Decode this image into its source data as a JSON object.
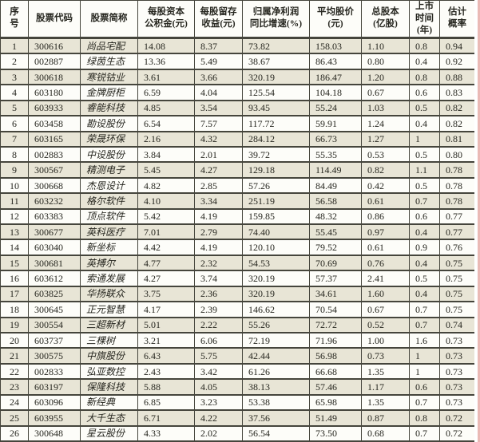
{
  "colors": {
    "row_alt": "#e8e5d6",
    "row_plain": "#fdfdf9",
    "border": "#45453c",
    "text": "#26261f",
    "edge_strip": "#eab9b5"
  },
  "chart_data": {
    "type": "table",
    "column_keys": [
      "index",
      "code",
      "name",
      "capital_reserve_per_share",
      "retained_earnings_per_share",
      "net_profit_yoy_growth_pct",
      "avg_price",
      "total_shares_100m",
      "years_listed",
      "estimated_probability"
    ],
    "column_labels": [
      "序\n号",
      "股票代码",
      "股票简称",
      "每股资本\n公积金(元)",
      "每股留存\n收益(元)",
      "归属净利润\n同比增速(%)",
      "平均股价\n(元)",
      "总股本\n(亿股)",
      "上市\n时间\n(年)",
      "估计\n概率"
    ],
    "rows": [
      [
        "1",
        "300616",
        "尚品宅配",
        "14.08",
        "8.37",
        "73.82",
        "158.03",
        "1.10",
        "0.8",
        "0.94"
      ],
      [
        "2",
        "002887",
        "绿茵生态",
        "13.36",
        "5.49",
        "38.67",
        "86.43",
        "0.80",
        "0.4",
        "0.92"
      ],
      [
        "3",
        "300618",
        "寒锐钴业",
        "3.61",
        "3.66",
        "320.19",
        "186.47",
        "1.20",
        "0.8",
        "0.88"
      ],
      [
        "4",
        "603180",
        "金牌厨柜",
        "6.59",
        "4.04",
        "125.54",
        "104.18",
        "0.67",
        "0.6",
        "0.83"
      ],
      [
        "5",
        "603933",
        "睿能科技",
        "4.85",
        "3.54",
        "93.45",
        "55.24",
        "1.03",
        "0.5",
        "0.82"
      ],
      [
        "6",
        "603458",
        "勘设股份",
        "6.54",
        "7.57",
        "117.72",
        "59.91",
        "1.24",
        "0.4",
        "0.82"
      ],
      [
        "7",
        "603165",
        "荣晟环保",
        "2.16",
        "4.32",
        "284.12",
        "66.73",
        "1.27",
        "1",
        "0.81"
      ],
      [
        "8",
        "002883",
        "中设股份",
        "3.84",
        "2.01",
        "39.72",
        "55.35",
        "0.53",
        "0.5",
        "0.80"
      ],
      [
        "9",
        "300567",
        "精测电子",
        "5.45",
        "4.27",
        "129.18",
        "114.49",
        "0.82",
        "1.1",
        "0.78"
      ],
      [
        "10",
        "300668",
        "杰恩设计",
        "4.82",
        "2.85",
        "57.26",
        "84.49",
        "0.42",
        "0.5",
        "0.78"
      ],
      [
        "11",
        "603232",
        "格尔软件",
        "4.10",
        "3.34",
        "251.19",
        "56.58",
        "0.61",
        "0.7",
        "0.78"
      ],
      [
        "12",
        "603383",
        "顶点软件",
        "5.42",
        "4.19",
        "159.85",
        "48.32",
        "0.86",
        "0.6",
        "0.77"
      ],
      [
        "13",
        "300677",
        "英科医疗",
        "7.01",
        "2.79",
        "74.40",
        "55.45",
        "0.97",
        "0.4",
        "0.77"
      ],
      [
        "14",
        "603040",
        "新坐标",
        "4.42",
        "4.19",
        "120.10",
        "79.52",
        "0.61",
        "0.9",
        "0.76"
      ],
      [
        "15",
        "300681",
        "英搏尔",
        "4.77",
        "2.32",
        "54.53",
        "70.69",
        "0.76",
        "0.4",
        "0.75"
      ],
      [
        "16",
        "603612",
        "索通发展",
        "4.27",
        "3.74",
        "320.19",
        "57.37",
        "2.41",
        "0.5",
        "0.75"
      ],
      [
        "17",
        "603825",
        "华扬联众",
        "3.75",
        "2.36",
        "320.19",
        "34.61",
        "1.60",
        "0.4",
        "0.75"
      ],
      [
        "18",
        "300645",
        "正元智慧",
        "4.17",
        "2.39",
        "146.62",
        "70.54",
        "0.67",
        "0.7",
        "0.75"
      ],
      [
        "19",
        "300554",
        "三超新材",
        "5.01",
        "2.22",
        "55.26",
        "72.72",
        "0.52",
        "0.7",
        "0.74"
      ],
      [
        "20",
        "603737",
        "三棵树",
        "3.21",
        "6.06",
        "72.19",
        "71.96",
        "1.00",
        "1.6",
        "0.73"
      ],
      [
        "21",
        "300575",
        "中旗股份",
        "6.43",
        "5.75",
        "42.44",
        "56.98",
        "0.73",
        "1",
        "0.73"
      ],
      [
        "22",
        "002833",
        "弘亚数控",
        "2.43",
        "3.42",
        "61.26",
        "66.68",
        "1.35",
        "1",
        "0.73"
      ],
      [
        "23",
        "603197",
        "保隆科技",
        "5.88",
        "4.05",
        "38.13",
        "57.46",
        "1.17",
        "0.6",
        "0.73"
      ],
      [
        "24",
        "603096",
        "新经典",
        "6.85",
        "3.23",
        "53.38",
        "65.98",
        "1.35",
        "0.7",
        "0.73"
      ],
      [
        "25",
        "603955",
        "大千生态",
        "6.71",
        "4.22",
        "37.56",
        "51.49",
        "0.87",
        "0.8",
        "0.72"
      ],
      [
        "26",
        "300648",
        "星云股份",
        "4.33",
        "2.02",
        "56.54",
        "73.50",
        "0.68",
        "0.7",
        "0.72"
      ]
    ]
  }
}
